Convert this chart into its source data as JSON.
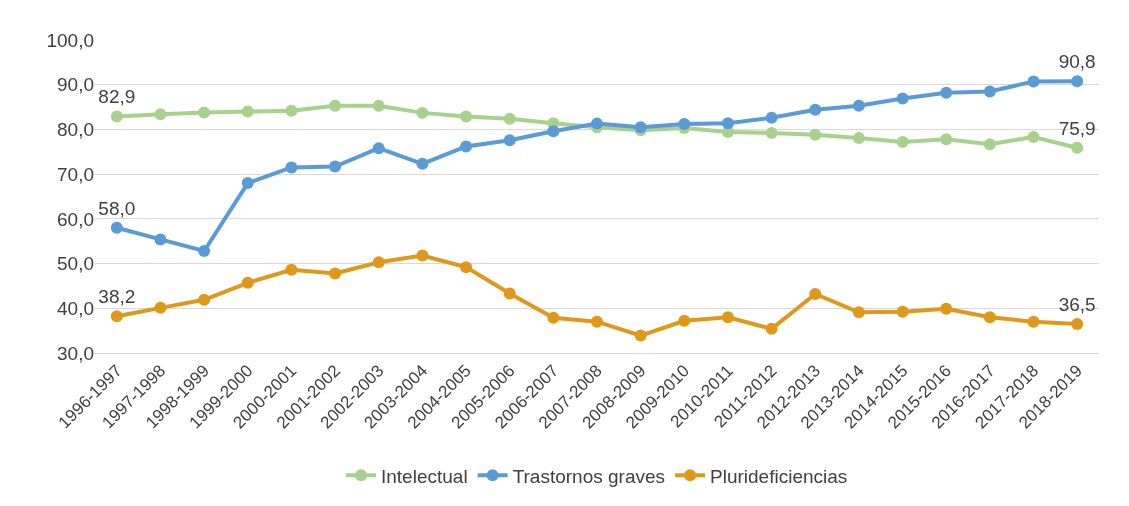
{
  "chart_data": {
    "type": "line",
    "categories": [
      "1996-1997",
      "1997-1998",
      "1998-1999",
      "1999-2000",
      "2000-2001",
      "2001-2002",
      "2002-2003",
      "2003-2004",
      "2004-2005",
      "2005-2006",
      "2006-2007",
      "2007-2008",
      "2008-2009",
      "2009-2010",
      "2010-2011",
      "2011-2012",
      "2012-2013",
      "2013-2014",
      "2014-2015",
      "2015-2016",
      "2016-2017",
      "2017-2018",
      "2018-2019"
    ],
    "series": [
      {
        "name": "Intelectual",
        "color": "#a9d18e",
        "values": [
          82.9,
          83.4,
          83.8,
          84.0,
          84.2,
          85.3,
          85.3,
          83.7,
          82.9,
          82.4,
          81.4,
          80.5,
          79.8,
          80.3,
          79.4,
          79.2,
          78.8,
          78.1,
          77.2,
          77.8,
          76.7,
          78.3,
          75.9
        ],
        "value_labels": [
          "82,9",
          null,
          null,
          null,
          null,
          null,
          null,
          null,
          null,
          null,
          null,
          null,
          null,
          null,
          null,
          null,
          null,
          null,
          null,
          null,
          null,
          null,
          "75,9"
        ]
      },
      {
        "name": "Trastornos graves",
        "color": "#5b9bd5",
        "values": [
          58.0,
          55.4,
          52.8,
          68.0,
          71.5,
          71.7,
          75.8,
          72.3,
          76.2,
          77.6,
          79.6,
          81.3,
          80.5,
          81.2,
          81.4,
          82.6,
          84.4,
          85.3,
          86.9,
          88.2,
          88.5,
          90.7,
          90.8
        ],
        "value_labels": [
          "58,0",
          null,
          null,
          null,
          null,
          null,
          null,
          null,
          null,
          null,
          null,
          null,
          null,
          null,
          null,
          null,
          null,
          null,
          null,
          null,
          null,
          null,
          "90,8"
        ]
      },
      {
        "name": "Plurideficiencias",
        "color": "#e0981b",
        "values": [
          38.2,
          40.1,
          41.9,
          45.7,
          48.6,
          47.8,
          50.3,
          51.8,
          49.2,
          43.3,
          37.9,
          37.0,
          33.9,
          37.2,
          38.0,
          35.4,
          43.2,
          39.1,
          39.2,
          39.9,
          38.0,
          37.0,
          36.5
        ],
        "value_labels": [
          "38,2",
          null,
          null,
          null,
          null,
          null,
          null,
          null,
          null,
          null,
          null,
          null,
          null,
          null,
          null,
          null,
          null,
          null,
          null,
          null,
          null,
          null,
          "36,5"
        ]
      }
    ],
    "ylim": [
      30,
      100
    ],
    "yticks": [
      {
        "value": 30,
        "label": "30,0"
      },
      {
        "value": 40,
        "label": "40,0"
      },
      {
        "value": 50,
        "label": "50,0"
      },
      {
        "value": 60,
        "label": "60,0"
      },
      {
        "value": 70,
        "label": "70,0"
      },
      {
        "value": 80,
        "label": "80,0"
      },
      {
        "value": 90,
        "label": "90,0"
      },
      {
        "value": 100,
        "label": "100,0"
      }
    ],
    "grid": "y",
    "legend": "bottom",
    "marker": "circle",
    "line_style": "solid"
  }
}
